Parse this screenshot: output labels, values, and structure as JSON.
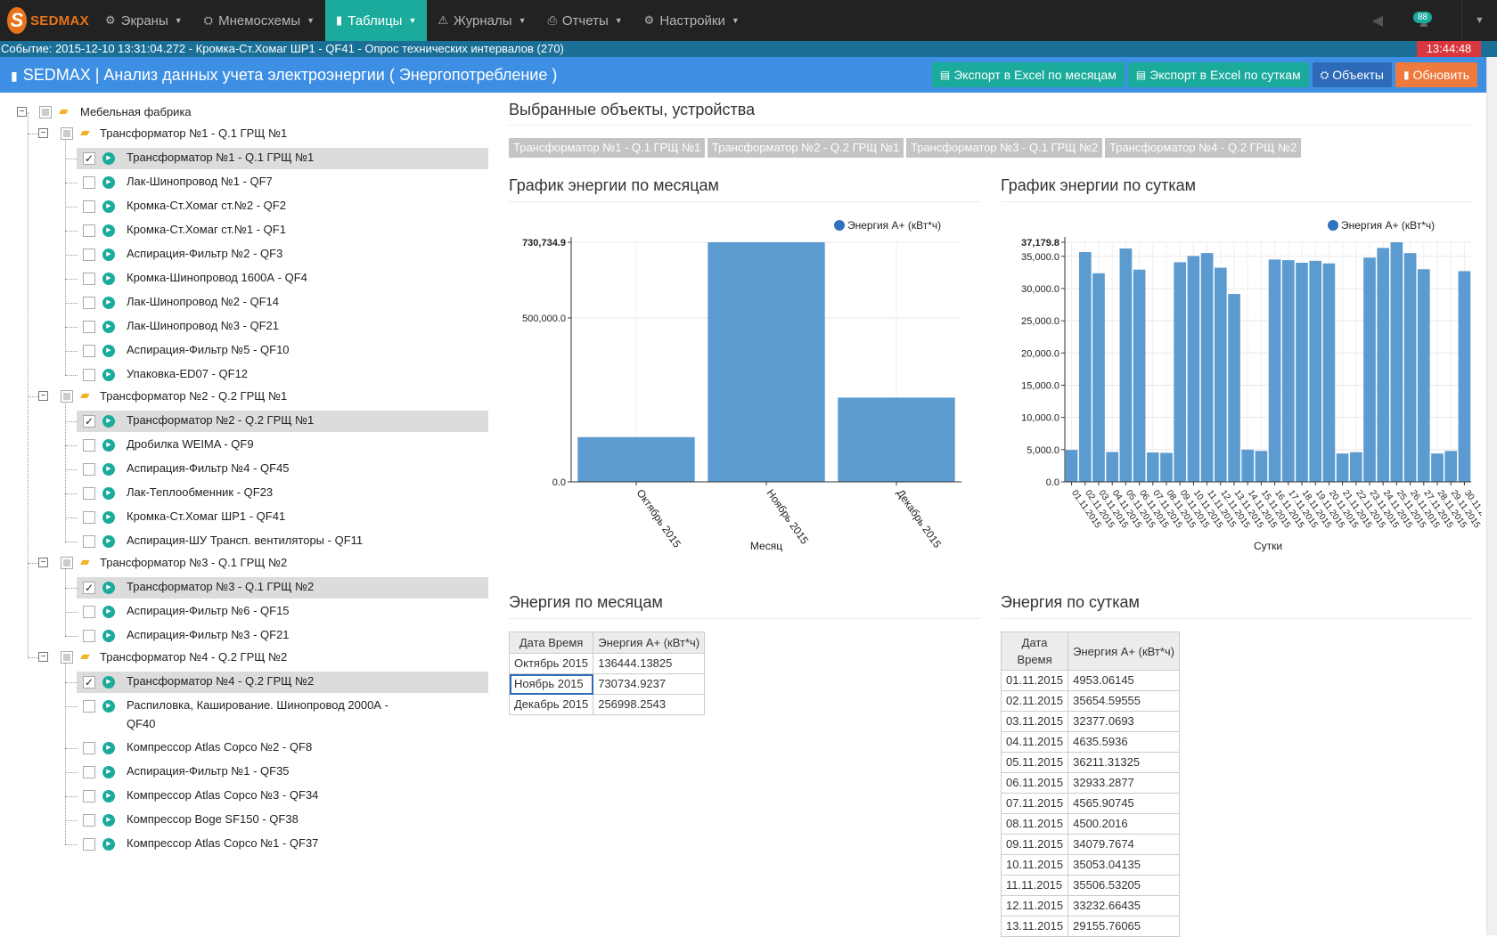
{
  "app": {
    "logo_letter": "S",
    "logo_text": "SEDMAX"
  },
  "menu": [
    {
      "label": "Экраны",
      "icon": "dashboard-icon",
      "glyph": "⚙"
    },
    {
      "label": "Мнемосхемы",
      "icon": "sitemap-icon",
      "glyph": "⛭"
    },
    {
      "label": "Таблицы",
      "icon": "bar-chart-icon",
      "glyph": "▮",
      "active": true
    },
    {
      "label": "Журналы",
      "icon": "warning-icon",
      "glyph": "⚠"
    },
    {
      "label": "Отчеты",
      "icon": "print-icon",
      "glyph": "⎙"
    },
    {
      "label": "Настройки",
      "icon": "cogs-icon",
      "glyph": "⚙"
    }
  ],
  "notifications": {
    "count": "88"
  },
  "event": {
    "text": "Событие:  2015-12-10 13:31:04.272 - Кромка-Ст.Хомаг ШР1 - QF41 - Опрос технических интервалов (270)",
    "time": "13:44:48"
  },
  "title": {
    "text": "SEDMAX | Анализ данных учета электроэнергии ( Энергопотребление )"
  },
  "buttons": {
    "export_months": "Экспорт в Excel по месяцам",
    "export_days": "Экспорт в Excel по суткам",
    "objects": "Объекты",
    "refresh": "Обновить"
  },
  "colors": {
    "accent": "#1aab9c",
    "title_bar": "#3d8fe3",
    "bar": "#5b9bd0",
    "legend_dot": "#2f73c0",
    "danger": "#d9363e",
    "orange": "#ef7a3e"
  },
  "tree": {
    "root": "Мебельная фабрика",
    "groups": [
      {
        "label": "Трансформатор №1 - Q.1 ГРЩ №1",
        "items": [
          {
            "label": "Трансформатор №1 - Q.1 ГРЩ №1",
            "checked": true
          },
          {
            "label": "Лак-Шинопровод №1 - QF7"
          },
          {
            "label": "Кромка-Ст.Хомаг ст.№2 - QF2"
          },
          {
            "label": "Кромка-Ст.Хомаг ст.№1 - QF1"
          },
          {
            "label": "Аспирация-Фильтр №2 - QF3"
          },
          {
            "label": "Кромка-Шинопровод 1600А - QF4"
          },
          {
            "label": "Лак-Шинопровод №2 - QF14"
          },
          {
            "label": "Лак-Шинопровод №3 - QF21"
          },
          {
            "label": "Аспирация-Фильтр №5 - QF10"
          },
          {
            "label": "Упаковка-ED07 - QF12"
          }
        ]
      },
      {
        "label": "Трансформатор №2 - Q.2 ГРЩ №1",
        "items": [
          {
            "label": "Трансформатор №2 - Q.2 ГРЩ №1",
            "checked": true
          },
          {
            "label": "Дробилка WEIMA - QF9"
          },
          {
            "label": "Аспирация-Фильтр №4 - QF45"
          },
          {
            "label": "Лак-Теплообменник - QF23"
          },
          {
            "label": "Кромка-Ст.Хомаг ШР1 - QF41"
          },
          {
            "label": "Аспирация-ШУ Трансп. вентиляторы - QF11"
          }
        ]
      },
      {
        "label": "Трансформатор №3 - Q.1 ГРЩ №2",
        "items": [
          {
            "label": "Трансформатор №3 - Q.1 ГРЩ №2",
            "checked": true
          },
          {
            "label": "Аспирация-Фильтр №6 - QF15"
          },
          {
            "label": "Аспирация-Фильтр №3 - QF21"
          }
        ]
      },
      {
        "label": "Трансформатор №4 - Q.2 ГРЩ №2",
        "items": [
          {
            "label": "Трансформатор №4 - Q.2 ГРЩ №2",
            "checked": true
          },
          {
            "label": "Распиловка, Каширование. Шинопровод 2000А -",
            "label2": "QF40"
          },
          {
            "label": "Компрессор Atlas Copco №2 - QF8"
          },
          {
            "label": "Аспирация-Фильтр №1 - QF35"
          },
          {
            "label": "Компрессор Atlas Copco №3 - QF34"
          },
          {
            "label": "Компрессор Boge SF150 - QF38"
          },
          {
            "label": "Компрессор Atlas Copco №1 - QF37"
          }
        ]
      }
    ]
  },
  "selected": {
    "title": "Выбранные объекты, устройства",
    "tags": [
      "Трансформатор №1 - Q.1 ГРЩ №1",
      "Трансформатор №2 - Q.2 ГРЩ №1",
      "Трансформатор №3 - Q.1 ГРЩ №2",
      "Трансформатор №4 - Q.2 ГРЩ №2"
    ]
  },
  "chart_titles": {
    "months": "График энергии по месяцам",
    "days": "График энергии по суткам"
  },
  "chart_data": [
    {
      "type": "bar",
      "title": "График энергии по месяцам",
      "xlabel": "Месяц",
      "legend": "Энергия А+ (кВт*ч)",
      "legend_position": "top-right",
      "categories": [
        "Октябрь 2015",
        "Ноябрь 2015",
        "Декабрь 2015"
      ],
      "values": [
        136444.13825,
        730734.9237,
        256998.2543
      ],
      "ylim": [
        0,
        730734.9
      ],
      "yticks": [
        0,
        500000,
        730734.9
      ],
      "ytick_labels": [
        "0.0",
        "500,000.0",
        "730,734.9"
      ],
      "grid": true
    },
    {
      "type": "bar",
      "title": "График энергии по суткам",
      "xlabel": "Сутки",
      "legend": "Энергия А+ (кВт*ч)",
      "legend_position": "top-right",
      "categories": [
        "01.11.2015",
        "02.11.2015",
        "03.11.2015",
        "04.11.2015",
        "05.11.2015",
        "06.11.2015",
        "07.11.2015",
        "08.11.2015",
        "09.11.2015",
        "10.11.2015",
        "11.11.2015",
        "12.11.2015",
        "13.11.2015",
        "14.11.2015",
        "15.11.2015",
        "16.11.2015",
        "17.11.2015",
        "18.11.2015",
        "19.11.2015",
        "20.11.2015",
        "21.11.2015",
        "22.11.2015",
        "23.11.2015",
        "24.11.2015",
        "25.11.2015",
        "26.11.2015",
        "27.11.2015",
        "28.11.2015",
        "29.11.2015",
        "30.11.2015"
      ],
      "values": [
        4953.06145,
        35654.59555,
        32377.0693,
        4635.5936,
        36211.31325,
        32933.2877,
        4565.90745,
        4500.2016,
        34079.7674,
        35053.04135,
        35506.53205,
        33232.66435,
        29155.76065,
        5000,
        4800,
        34500,
        34400,
        34000,
        34300,
        33900,
        4400,
        4600,
        34800,
        36300,
        37179.8,
        35500,
        33000,
        4400,
        4800,
        32700
      ],
      "ylim": [
        0,
        37179.8
      ],
      "yticks": [
        0,
        5000,
        10000,
        15000,
        20000,
        25000,
        30000,
        35000,
        37179.8
      ],
      "ytick_labels": [
        "0.0",
        "5,000.0",
        "10,000.0",
        "15,000.0",
        "20,000.0",
        "25,000.0",
        "30,000.0",
        "35,000.0",
        "37,179.8"
      ],
      "grid": true
    }
  ],
  "table_months": {
    "title": "Энергия по месяцам",
    "headers": [
      "Дата Время",
      "Энергия А+ (кВт*ч)"
    ],
    "rows": [
      [
        "Октябрь 2015",
        "136444.13825"
      ],
      [
        "Ноябрь 2015",
        "730734.9237"
      ],
      [
        "Декабрь 2015",
        "256998.2543"
      ]
    ]
  },
  "table_days": {
    "title": "Энергия по суткам",
    "headers": [
      "Дата Время",
      "Энергия А+ (кВт*ч)"
    ],
    "rows": [
      [
        "01.11.2015",
        "4953.06145"
      ],
      [
        "02.11.2015",
        "35654.59555"
      ],
      [
        "03.11.2015",
        "32377.0693"
      ],
      [
        "04.11.2015",
        "4635.5936"
      ],
      [
        "05.11.2015",
        "36211.31325"
      ],
      [
        "06.11.2015",
        "32933.2877"
      ],
      [
        "07.11.2015",
        "4565.90745"
      ],
      [
        "08.11.2015",
        "4500.2016"
      ],
      [
        "09.11.2015",
        "34079.7674"
      ],
      [
        "10.11.2015",
        "35053.04135"
      ],
      [
        "11.11.2015",
        "35506.53205"
      ],
      [
        "12.11.2015",
        "33232.66435"
      ],
      [
        "13.11.2015",
        "29155.76065"
      ]
    ]
  }
}
